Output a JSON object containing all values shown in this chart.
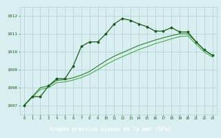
{
  "title": "Graphe pression niveau de la mer (hPa)",
  "hours": [
    0,
    1,
    2,
    3,
    4,
    5,
    6,
    7,
    8,
    9,
    10,
    11,
    12,
    13,
    14,
    15,
    16,
    17,
    18,
    19,
    20,
    21,
    22,
    23
  ],
  "y_main": [
    1007.0,
    1007.5,
    1007.5,
    1008.1,
    1008.5,
    1008.5,
    1009.2,
    1010.3,
    1010.55,
    1010.55,
    1011.0,
    1011.55,
    1011.85,
    1011.75,
    1011.55,
    1011.4,
    1011.15,
    1011.15,
    1011.35,
    1011.1,
    1011.1,
    1010.55,
    1010.1,
    1009.8
  ],
  "y_a": [
    1007.0,
    1007.5,
    1008.0,
    1008.1,
    1008.4,
    1008.45,
    1008.55,
    1008.7,
    1008.9,
    1009.2,
    1009.5,
    1009.75,
    1009.95,
    1010.15,
    1010.35,
    1010.5,
    1010.65,
    1010.78,
    1010.9,
    1011.0,
    1011.0,
    1010.55,
    1010.1,
    1009.8
  ],
  "y_b": [
    1007.0,
    1007.45,
    1007.9,
    1008.0,
    1008.28,
    1008.32,
    1008.42,
    1008.56,
    1008.75,
    1009.0,
    1009.28,
    1009.52,
    1009.72,
    1009.92,
    1010.12,
    1010.28,
    1010.45,
    1010.58,
    1010.72,
    1010.85,
    1010.88,
    1010.42,
    1009.98,
    1009.7
  ],
  "ylim": [
    1006.5,
    1012.5
  ],
  "yticks": [
    1007,
    1008,
    1009,
    1010,
    1011,
    1012
  ],
  "xticks": [
    0,
    1,
    2,
    3,
    4,
    5,
    6,
    7,
    8,
    9,
    10,
    11,
    12,
    13,
    14,
    15,
    16,
    17,
    18,
    19,
    20,
    21,
    22,
    23
  ],
  "bg_color": "#d8eef0",
  "grid_color": "#b0d0d0",
  "dark_green": "#1a5c1a",
  "mid_green": "#2d7a2d",
  "light_green": "#4aaa4a",
  "title_bg": "#2d5a1b",
  "title_fg": "#ffffff"
}
